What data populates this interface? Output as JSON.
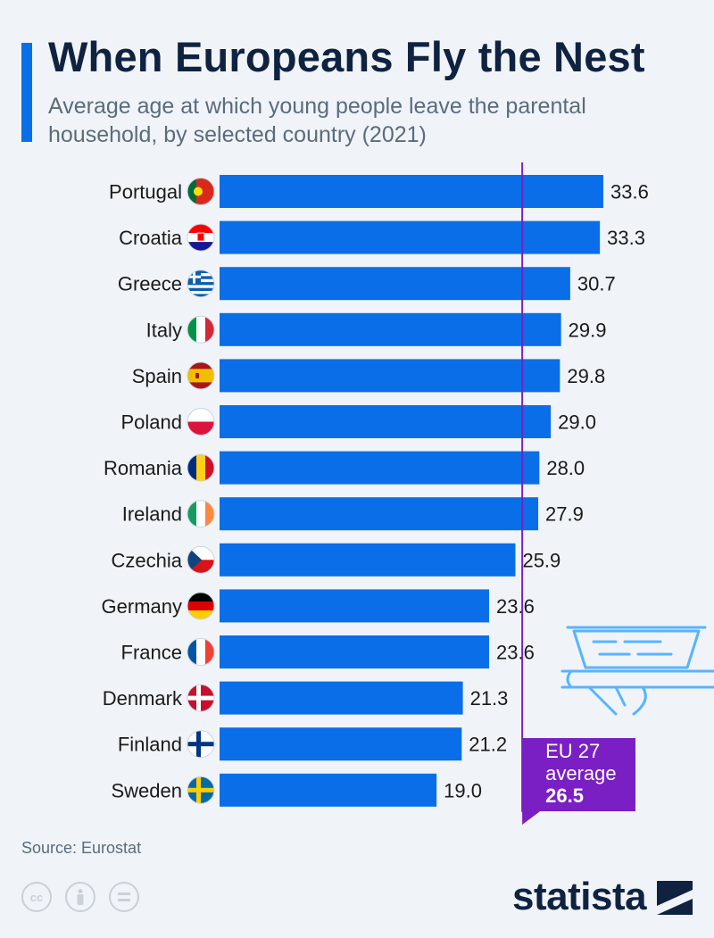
{
  "title": "When Europeans Fly the Nest",
  "subtitle": "Average age at which young people leave the parental household, by selected country (2021)",
  "source": "Source: Eurostat",
  "brand": "statista",
  "license_icons": [
    "cc-icon",
    "attribution-icon",
    "no-derivatives-icon"
  ],
  "colors": {
    "bar": "#0a6ee8",
    "average_line": "#7a1fc4",
    "accent": "#0a6ee8",
    "title": "#0f2341"
  },
  "chart_data": {
    "type": "bar",
    "orientation": "horizontal",
    "title": "When Europeans Fly the Nest",
    "categories": [
      "Portugal",
      "Croatia",
      "Greece",
      "Italy",
      "Spain",
      "Poland",
      "Romania",
      "Ireland",
      "Czechia",
      "Germany",
      "France",
      "Denmark",
      "Finland",
      "Sweden"
    ],
    "value_labels": [
      "33.6",
      "33.3",
      "30.7",
      "29.9",
      "29.8",
      "29.0",
      "28.0",
      "27.9",
      "25.9",
      "23.6",
      "23.6",
      "21.3",
      "21.2",
      "19.0"
    ],
    "values": [
      33.6,
      33.3,
      30.7,
      29.9,
      29.8,
      29.0,
      28.0,
      27.9,
      25.9,
      23.6,
      23.6,
      21.3,
      21.2,
      19.0
    ],
    "xlim": [
      0,
      35
    ],
    "xlabel": "",
    "ylabel": "",
    "reference_line": {
      "value": 26.5,
      "label_line1": "EU 27",
      "label_line2": "average",
      "label_value": "26.5"
    }
  }
}
